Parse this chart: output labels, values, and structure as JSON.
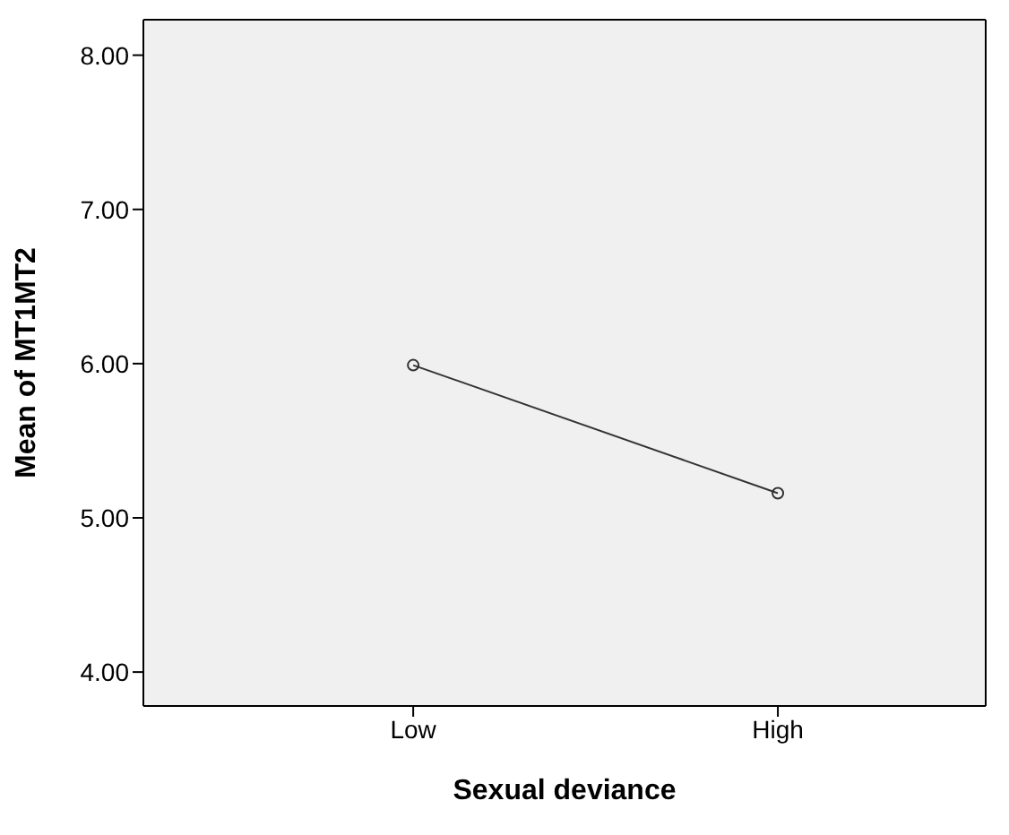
{
  "chart_data": {
    "type": "line",
    "xlabel": "Sexual deviance",
    "ylabel": "Mean of MT1MT2",
    "categories": [
      "Low",
      "High"
    ],
    "series": [
      {
        "color": "#333333",
        "values": [
          5.99,
          5.16
        ]
      }
    ],
    "ylim": [
      3.78,
      8.23
    ],
    "yticks": [
      {
        "value": 4,
        "label": "4.00"
      },
      {
        "value": 5,
        "label": "5.00"
      },
      {
        "value": 6,
        "label": "6.00"
      },
      {
        "value": 7,
        "label": "7.00"
      },
      {
        "value": 8,
        "label": "8.00"
      }
    ],
    "marker": "circle",
    "line_style": "solid",
    "grid": false
  }
}
